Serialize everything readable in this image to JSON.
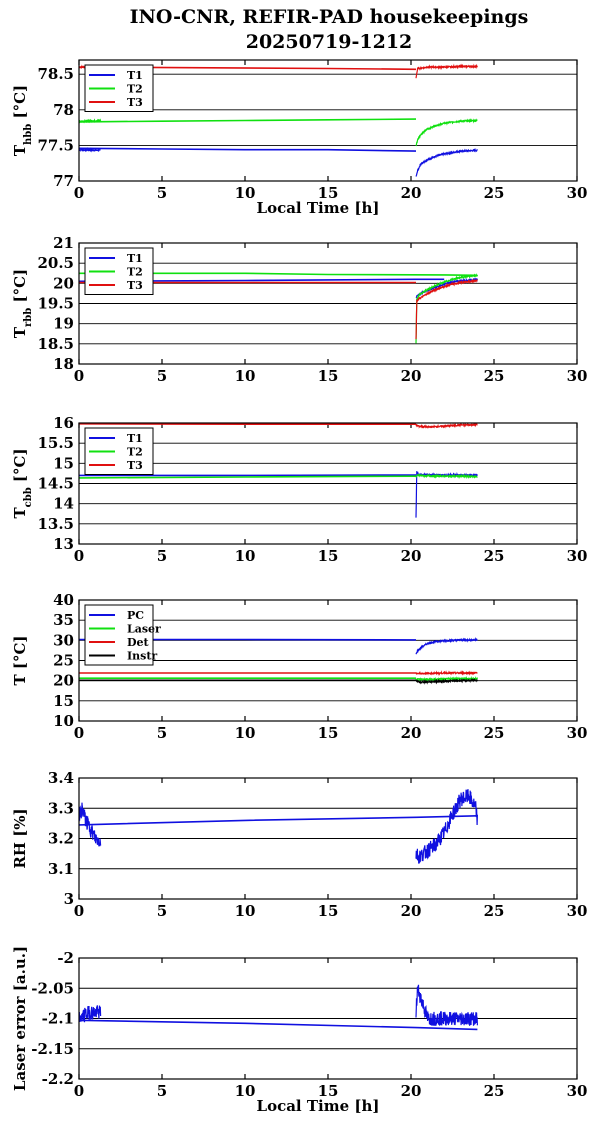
{
  "title_lines": [
    "INO-CNR, REFIR-PAD housekeepings",
    "20250719-1212"
  ],
  "colors": {
    "blue": "#1010e0",
    "green": "#10e010",
    "red": "#e01010",
    "black": "#000000"
  },
  "chart_data": [
    {
      "type": "line",
      "ylabel": "T",
      "ylabel_sub": "hbb",
      "ylabel_unit": " [°C]",
      "xlabel": "Local Time [h]",
      "xlim": [
        0,
        30
      ],
      "ylim": [
        77,
        78.7
      ],
      "xticks": [
        "0",
        "5",
        "10",
        "15",
        "20",
        "25",
        "30"
      ],
      "yticks": [
        {
          "v": 77,
          "label": "77"
        },
        {
          "v": 77.5,
          "label": "77.5"
        },
        {
          "v": 78,
          "label": "78"
        },
        {
          "v": 78.5,
          "label": "78.5"
        }
      ],
      "legend": "top-left",
      "series": [
        {
          "name": "T1",
          "color": "blue",
          "gap": [
            1.3,
            20.3
          ],
          "x": [
            0,
            1.3,
            20.3,
            20.4,
            20.6,
            21.0,
            21.5,
            22.0,
            22.5,
            23.0,
            24.0
          ],
          "y": [
            77.44,
            77.43,
            77.06,
            77.15,
            77.24,
            77.3,
            77.35,
            77.38,
            77.4,
            77.42,
            77.43
          ],
          "flat": [
            [
              0,
              77.46
            ],
            [
              5,
              77.45
            ],
            [
              10,
              77.44
            ],
            [
              15,
              77.44
            ],
            [
              20.3,
              77.42
            ]
          ]
        },
        {
          "name": "T2",
          "color": "green",
          "gap": [
            1.3,
            20.3
          ],
          "x": [
            0,
            1.3,
            20.3,
            20.4,
            20.6,
            21.0,
            21.5,
            22.0,
            22.5,
            23.0,
            24.0
          ],
          "y": [
            77.84,
            77.85,
            77.49,
            77.58,
            77.66,
            77.73,
            77.78,
            77.81,
            77.83,
            77.84,
            77.85
          ],
          "flat": [
            [
              0,
              77.83
            ],
            [
              5,
              77.84
            ],
            [
              10,
              77.85
            ],
            [
              15,
              77.86
            ],
            [
              20.3,
              77.87
            ]
          ]
        },
        {
          "name": "T3",
          "color": "red",
          "gap": [
            1.3,
            20.3
          ],
          "x": [
            0,
            1.3,
            20.3,
            20.4,
            21.0,
            22.0,
            23.0,
            24.0
          ],
          "y": [
            78.6,
            78.6,
            78.45,
            78.58,
            78.6,
            78.6,
            78.61,
            78.61
          ],
          "flat": [
            [
              0,
              78.6
            ],
            [
              8,
              78.59
            ],
            [
              15,
              78.58
            ],
            [
              20.3,
              78.57
            ]
          ]
        }
      ]
    },
    {
      "type": "line",
      "ylabel": "T",
      "ylabel_sub": "rbb",
      "ylabel_unit": " [°C]",
      "xlabel": "",
      "xlim": [
        0,
        30
      ],
      "ylim": [
        18,
        21
      ],
      "xticks": [
        "0",
        "5",
        "10",
        "15",
        "20",
        "25",
        "30"
      ],
      "yticks": [
        {
          "v": 18,
          "label": "18"
        },
        {
          "v": 18.5,
          "label": "18.5"
        },
        {
          "v": 19,
          "label": "19"
        },
        {
          "v": 19.5,
          "label": "19.5"
        },
        {
          "v": 20,
          "label": "20"
        },
        {
          "v": 20.5,
          "label": "20.5"
        },
        {
          "v": 21,
          "label": "21"
        }
      ],
      "legend": "top-left",
      "series": [
        {
          "name": "T1",
          "color": "blue",
          "gap": [
            20.3,
            20.3
          ],
          "x": [
            20.3,
            20.4,
            20.8,
            21.5,
            22.0,
            22.5,
            23.0,
            24.0
          ],
          "y": [
            19.65,
            19.7,
            19.8,
            19.9,
            19.98,
            20.03,
            20.06,
            20.1
          ],
          "flat": [
            [
              0,
              20.05
            ],
            [
              10,
              20.07
            ],
            [
              20.3,
              20.1
            ],
            [
              22,
              20.1
            ]
          ]
        },
        {
          "name": "T2",
          "color": "green",
          "gap": [
            20.3,
            20.3
          ],
          "x": [
            20.3,
            20.35,
            20.5,
            21.0,
            21.5,
            22.0,
            22.5,
            23.0,
            23.5,
            24.0
          ],
          "y": [
            18.5,
            19.6,
            19.72,
            19.85,
            19.95,
            20.03,
            20.1,
            20.15,
            20.18,
            20.2
          ],
          "flat": [
            [
              0,
              20.25
            ],
            [
              10,
              20.25
            ],
            [
              15,
              20.22
            ],
            [
              22,
              20.21
            ],
            [
              24,
              20.2
            ]
          ]
        },
        {
          "name": "T3",
          "color": "red",
          "gap": [
            20.3,
            20.3
          ],
          "x": [
            20.3,
            20.35,
            20.5,
            21.0,
            21.5,
            22.0,
            22.5,
            23.0,
            24.0
          ],
          "y": [
            18.6,
            19.55,
            19.62,
            19.75,
            19.85,
            19.92,
            19.98,
            20.02,
            20.07
          ],
          "flat": [
            [
              0,
              20.02
            ],
            [
              10,
              20.02
            ],
            [
              20.3,
              20.02
            ]
          ]
        }
      ]
    },
    {
      "type": "line",
      "ylabel": "T",
      "ylabel_sub": "cbb",
      "ylabel_unit": " [°C]",
      "xlabel": "",
      "xlim": [
        0,
        30
      ],
      "ylim": [
        13,
        16
      ],
      "xticks": [
        "0",
        "5",
        "10",
        "15",
        "20",
        "25",
        "30"
      ],
      "yticks": [
        {
          "v": 13,
          "label": "13"
        },
        {
          "v": 13.5,
          "label": "13.5"
        },
        {
          "v": 14,
          "label": "14"
        },
        {
          "v": 14.5,
          "label": "14.5"
        },
        {
          "v": 15,
          "label": "15"
        },
        {
          "v": 15.5,
          "label": "15.5"
        },
        {
          "v": 16,
          "label": "16"
        }
      ],
      "legend": "top-left",
      "series": [
        {
          "name": "T1",
          "color": "blue",
          "gap": [
            20.3,
            20.3
          ],
          "x": [
            20.3,
            20.35,
            20.45,
            21.0,
            22.0,
            23.0,
            24.0
          ],
          "y": [
            13.65,
            14.8,
            14.72,
            14.72,
            14.71,
            14.71,
            14.7
          ],
          "flat": [
            [
              0,
              14.7
            ],
            [
              10,
              14.7
            ],
            [
              20.3,
              14.71
            ]
          ]
        },
        {
          "name": "T2",
          "color": "green",
          "gap": [
            20.3,
            20.3
          ],
          "x": [
            20.3,
            20.4,
            21.0,
            22.0,
            23.0,
            24.0
          ],
          "y": [
            14.66,
            14.7,
            14.69,
            14.68,
            14.68,
            14.67
          ],
          "flat": [
            [
              0,
              14.64
            ],
            [
              10,
              14.66
            ],
            [
              20.3,
              14.68
            ]
          ]
        },
        {
          "name": "T3",
          "color": "red",
          "gap": [
            20.3,
            20.3
          ],
          "x": [
            20.3,
            20.5,
            21.0,
            22.0,
            23.0,
            24.0
          ],
          "y": [
            15.95,
            15.92,
            15.9,
            15.92,
            15.95,
            15.96
          ],
          "flat": [
            [
              0,
              15.98
            ],
            [
              10,
              15.97
            ],
            [
              20.3,
              15.97
            ]
          ]
        }
      ]
    },
    {
      "type": "line",
      "ylabel": "T [°C]",
      "ylabel_sub": "",
      "ylabel_unit": "",
      "xlabel": "",
      "xlim": [
        0,
        30
      ],
      "ylim": [
        10,
        40
      ],
      "xticks": [
        "0",
        "5",
        "10",
        "15",
        "20",
        "25",
        "30"
      ],
      "yticks": [
        {
          "v": 10,
          "label": "10"
        },
        {
          "v": 15,
          "label": "15"
        },
        {
          "v": 20,
          "label": "20"
        },
        {
          "v": 25,
          "label": "25"
        },
        {
          "v": 30,
          "label": "30"
        },
        {
          "v": 35,
          "label": "35"
        },
        {
          "v": 40,
          "label": "40"
        }
      ],
      "legend": "top-left",
      "series": [
        {
          "name": "PC",
          "color": "blue",
          "gap": [
            20.3,
            20.3
          ],
          "x": [
            20.3,
            20.4,
            20.7,
            21.0,
            21.5,
            22.0,
            23.0,
            24.0
          ],
          "y": [
            26.5,
            27.5,
            28.5,
            29.2,
            29.7,
            29.9,
            30.1,
            30.1
          ],
          "flat": [
            [
              0,
              30.2
            ],
            [
              10,
              30.2
            ],
            [
              20.3,
              30.1
            ]
          ]
        },
        {
          "name": "Laser",
          "color": "green",
          "gap": [
            20.3,
            20.3
          ],
          "x": [
            20.3,
            21.0,
            22.0,
            23.0,
            24.0
          ],
          "y": [
            20.4,
            20.3,
            20.4,
            20.5,
            20.5
          ],
          "flat": [
            [
              0,
              20.6
            ],
            [
              10,
              20.6
            ],
            [
              20.3,
              20.6
            ]
          ]
        },
        {
          "name": "Det",
          "color": "red",
          "gap": [
            20.3,
            20.3
          ],
          "x": [
            20.3,
            21.0,
            22.0,
            23.0,
            24.0
          ],
          "y": [
            21.8,
            21.8,
            21.9,
            21.9,
            21.9
          ],
          "flat": [
            [
              0,
              21.9
            ],
            [
              10,
              21.9
            ],
            [
              20.3,
              21.9
            ]
          ]
        },
        {
          "name": "Instr",
          "color": "black",
          "gap": [
            20.3,
            20.3
          ],
          "x": [
            20.3,
            20.5,
            21.0,
            22.0,
            23.0,
            24.0
          ],
          "y": [
            20.1,
            19.6,
            19.7,
            19.9,
            20.0,
            20.1
          ],
          "flat": [
            [
              0,
              20.1
            ],
            [
              10,
              20.1
            ],
            [
              20.3,
              20.1
            ]
          ]
        }
      ]
    },
    {
      "type": "line",
      "ylabel": "RH [%]",
      "ylabel_sub": "",
      "ylabel_unit": "",
      "xlabel": "",
      "xlim": [
        0,
        30
      ],
      "ylim": [
        3,
        3.4
      ],
      "xticks": [
        "0",
        "5",
        "10",
        "15",
        "20",
        "25",
        "30"
      ],
      "yticks": [
        {
          "v": 3,
          "label": "3"
        },
        {
          "v": 3.1,
          "label": "3.1"
        },
        {
          "v": 3.2,
          "label": "3.2"
        },
        {
          "v": 3.3,
          "label": "3.3"
        },
        {
          "v": 3.4,
          "label": "3.4"
        }
      ],
      "legend": "none",
      "series": [
        {
          "name": "",
          "color": "blue",
          "noise": 0.025,
          "x": [
            0,
            0.2,
            0.4,
            0.7,
            1.0,
            1.3,
            20.3,
            20.5,
            21.0,
            21.5,
            22.0,
            22.5,
            23.0,
            23.5,
            23.9,
            24.0
          ],
          "y": [
            3.27,
            3.3,
            3.26,
            3.23,
            3.2,
            3.19,
            3.15,
            3.14,
            3.16,
            3.18,
            3.22,
            3.28,
            3.33,
            3.34,
            3.3,
            3.26
          ],
          "flat": [
            [
              0,
              3.245
            ],
            [
              10,
              3.26
            ],
            [
              20.3,
              3.27
            ],
            [
              24,
              3.275
            ]
          ],
          "gap": [
            1.3,
            20.3
          ]
        }
      ]
    },
    {
      "type": "line",
      "ylabel": "Laser error [a.u.]",
      "ylabel_sub": "",
      "ylabel_unit": "",
      "xlabel": "Local Time [h]",
      "xlim": [
        0,
        30
      ],
      "ylim": [
        -2.2,
        -2
      ],
      "xticks": [
        "0",
        "5",
        "10",
        "15",
        "20",
        "25",
        "30"
      ],
      "yticks": [
        {
          "v": -2.2,
          "label": "-2.2"
        },
        {
          "v": -2.15,
          "label": "-2.15"
        },
        {
          "v": -2.1,
          "label": "-2.1"
        },
        {
          "v": -2.05,
          "label": "-2.05"
        },
        {
          "v": -2,
          "label": "-2"
        }
      ],
      "legend": "none",
      "series": [
        {
          "name": "",
          "color": "blue",
          "noise": 0.012,
          "x": [
            0,
            0.3,
            0.6,
            1.0,
            1.3,
            20.3,
            20.4,
            21.0,
            22.0,
            23.0,
            24.0
          ],
          "y": [
            -2.1,
            -2.095,
            -2.09,
            -2.09,
            -2.09,
            -2.09,
            -2.05,
            -2.1,
            -2.1,
            -2.1,
            -2.1
          ],
          "flat": [
            [
              0,
              -2.103
            ],
            [
              10,
              -2.108
            ],
            [
              20.3,
              -2.115
            ],
            [
              24,
              -2.118
            ]
          ],
          "gap": [
            1.3,
            20.3
          ]
        }
      ]
    }
  ]
}
